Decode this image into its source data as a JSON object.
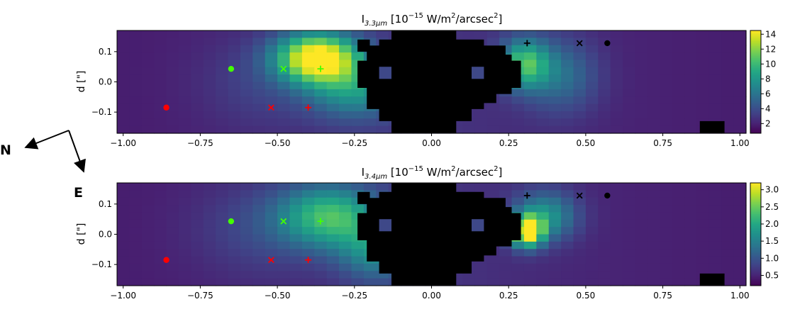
{
  "compass": {
    "north_label": "N",
    "east_label": "E"
  },
  "chart_data": [
    {
      "type": "heatmap",
      "title_base": "I",
      "title_sub": "3.3μm",
      "title_rest": " [10",
      "title_exp": "−15",
      "title_unit": " W/m",
      "title_unit_exp": "2",
      "title_tail": "/arcsec",
      "title_tail_exp": "2",
      "title_close": "]",
      "ylabel": "d [\"]",
      "xlim": [
        -1.02,
        1.02
      ],
      "ylim": [
        -0.17,
        0.17
      ],
      "x_ticks": [
        -1.0,
        -0.75,
        -0.5,
        -0.25,
        0.0,
        0.25,
        0.5,
        0.75,
        1.0
      ],
      "x_tick_labels": [
        "−1.00",
        "−0.75",
        "−0.50",
        "−0.25",
        "0.00",
        "0.25",
        "0.50",
        "0.75",
        "1.00"
      ],
      "y_ticks": [
        0.1,
        0.0,
        -0.1
      ],
      "y_tick_labels": [
        "0.1",
        "0.0",
        "−0.1"
      ],
      "colormap": "viridis",
      "color_range": [
        0.7,
        14.5
      ],
      "colorbar_ticks": [
        2,
        4,
        6,
        8,
        10,
        12,
        14
      ],
      "colorbar_tick_labels": [
        "2",
        "4",
        "6",
        "8",
        "10",
        "12",
        "14"
      ],
      "markers": [
        {
          "x": -0.86,
          "y": -0.085,
          "symbol": "dot",
          "color": "#ff0000"
        },
        {
          "x": -0.52,
          "y": -0.085,
          "symbol": "cross",
          "color": "#ff0000"
        },
        {
          "x": -0.4,
          "y": -0.085,
          "symbol": "plus",
          "color": "#ff0000"
        },
        {
          "x": -0.65,
          "y": 0.043,
          "symbol": "dot",
          "color": "#44ff00"
        },
        {
          "x": -0.48,
          "y": 0.043,
          "symbol": "cross",
          "color": "#44ff00"
        },
        {
          "x": -0.36,
          "y": 0.043,
          "symbol": "plus",
          "color": "#44ff00"
        },
        {
          "x": 0.31,
          "y": 0.128,
          "symbol": "plus",
          "color": "#000000"
        },
        {
          "x": 0.48,
          "y": 0.128,
          "symbol": "cross",
          "color": "#000000"
        },
        {
          "x": 0.57,
          "y": 0.128,
          "symbol": "dot",
          "color": "#000000"
        }
      ]
    },
    {
      "type": "heatmap",
      "title_base": "I",
      "title_sub": "3.4μm",
      "title_rest": " [10",
      "title_exp": "−15",
      "title_unit": " W/m",
      "title_unit_exp": "2",
      "title_tail": "/arcsec",
      "title_tail_exp": "2",
      "title_close": "]",
      "ylabel": "d [\"]",
      "xlim": [
        -1.02,
        1.02
      ],
      "ylim": [
        -0.17,
        0.17
      ],
      "x_ticks": [
        -1.0,
        -0.75,
        -0.5,
        -0.25,
        0.0,
        0.25,
        0.5,
        0.75,
        1.0
      ],
      "x_tick_labels": [
        "−1.00",
        "−0.75",
        "−0.50",
        "−0.25",
        "0.00",
        "0.25",
        "0.50",
        "0.75",
        "1.00"
      ],
      "y_ticks": [
        0.1,
        0.0,
        -0.1
      ],
      "y_tick_labels": [
        "0.1",
        "0.0",
        "−0.1"
      ],
      "colormap": "viridis",
      "color_range": [
        0.2,
        3.2
      ],
      "colorbar_ticks": [
        0.5,
        1.0,
        1.5,
        2.0,
        2.5,
        3.0
      ],
      "colorbar_tick_labels": [
        "0.5",
        "1.0",
        "1.5",
        "2.0",
        "2.5",
        "3.0"
      ],
      "markers": [
        {
          "x": -0.86,
          "y": -0.085,
          "symbol": "dot",
          "color": "#ff0000"
        },
        {
          "x": -0.52,
          "y": -0.085,
          "symbol": "cross",
          "color": "#ff0000"
        },
        {
          "x": -0.4,
          "y": -0.085,
          "symbol": "plus",
          "color": "#ff0000"
        },
        {
          "x": -0.65,
          "y": 0.043,
          "symbol": "dot",
          "color": "#44ff00"
        },
        {
          "x": -0.48,
          "y": 0.043,
          "symbol": "cross",
          "color": "#44ff00"
        },
        {
          "x": -0.36,
          "y": 0.043,
          "symbol": "plus",
          "color": "#44ff00"
        },
        {
          "x": 0.31,
          "y": 0.128,
          "symbol": "plus",
          "color": "#000000"
        },
        {
          "x": 0.48,
          "y": 0.128,
          "symbol": "cross",
          "color": "#000000"
        },
        {
          "x": 0.57,
          "y": 0.128,
          "symbol": "dot",
          "color": "#000000"
        }
      ]
    }
  ]
}
